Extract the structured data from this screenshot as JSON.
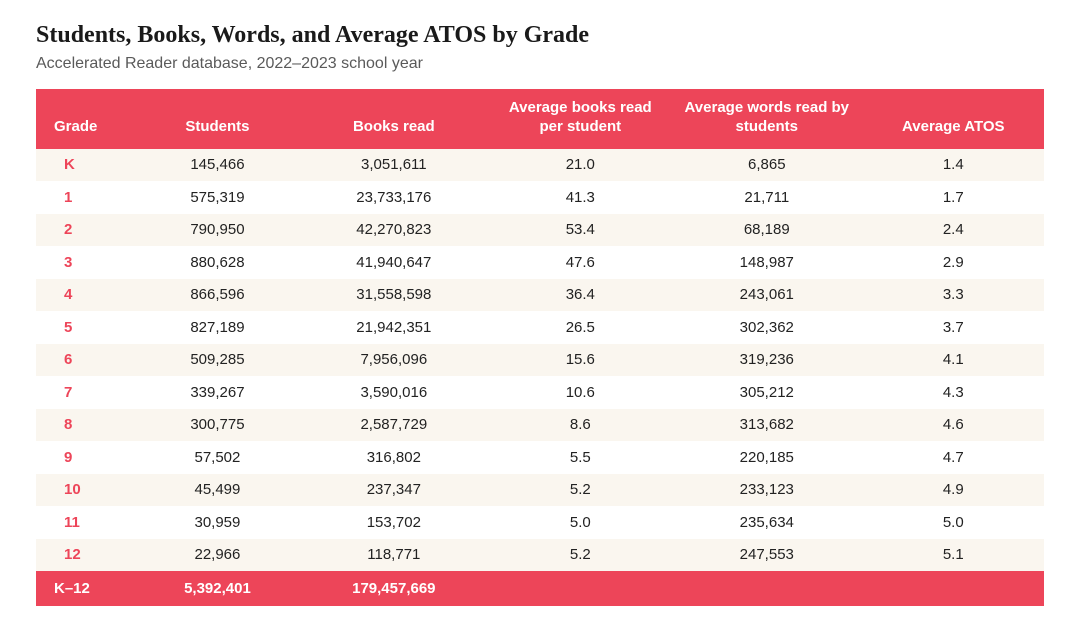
{
  "title": "Students, Books, Words, and Average ATOS by Grade",
  "subtitle": "Accelerated Reader database, 2022–2023 school year",
  "table": {
    "type": "table",
    "header_bg": "#ed4559",
    "header_fg": "#ffffff",
    "row_even_bg": "#faf6ef",
    "row_odd_bg": "#ffffff",
    "grade_color": "#ed4559",
    "text_color": "#222222",
    "title_fontsize": 24,
    "subtitle_fontsize": 16,
    "header_fontsize": 15,
    "cell_fontsize": 15,
    "columns": [
      {
        "key": "grade",
        "label": "Grade",
        "align": "left",
        "width_pct": 10
      },
      {
        "key": "students",
        "label": "Students",
        "align": "center",
        "width_pct": 16
      },
      {
        "key": "books",
        "label": "Books read",
        "align": "center",
        "width_pct": 19
      },
      {
        "key": "avg_books",
        "label": "Average books read per student",
        "align": "center",
        "width_pct": 18
      },
      {
        "key": "avg_words",
        "label": "Average words read by students",
        "align": "center",
        "width_pct": 19
      },
      {
        "key": "atos",
        "label": "Average ATOS",
        "align": "center",
        "width_pct": 18
      }
    ],
    "rows": [
      {
        "grade": "K",
        "students": "145,466",
        "books": "3,051,611",
        "avg_books": "21.0",
        "avg_words": "6,865",
        "atos": "1.4"
      },
      {
        "grade": "1",
        "students": "575,319",
        "books": "23,733,176",
        "avg_books": "41.3",
        "avg_words": "21,711",
        "atos": "1.7"
      },
      {
        "grade": "2",
        "students": "790,950",
        "books": "42,270,823",
        "avg_books": "53.4",
        "avg_words": "68,189",
        "atos": "2.4"
      },
      {
        "grade": "3",
        "students": "880,628",
        "books": "41,940,647",
        "avg_books": "47.6",
        "avg_words": "148,987",
        "atos": "2.9"
      },
      {
        "grade": "4",
        "students": "866,596",
        "books": "31,558,598",
        "avg_books": "36.4",
        "avg_words": "243,061",
        "atos": "3.3"
      },
      {
        "grade": "5",
        "students": "827,189",
        "books": "21,942,351",
        "avg_books": "26.5",
        "avg_words": "302,362",
        "atos": "3.7"
      },
      {
        "grade": "6",
        "students": "509,285",
        "books": "7,956,096",
        "avg_books": "15.6",
        "avg_words": "319,236",
        "atos": "4.1"
      },
      {
        "grade": "7",
        "students": "339,267",
        "books": "3,590,016",
        "avg_books": "10.6",
        "avg_words": "305,212",
        "atos": "4.3"
      },
      {
        "grade": "8",
        "students": "300,775",
        "books": "2,587,729",
        "avg_books": "8.6",
        "avg_words": "313,682",
        "atos": "4.6"
      },
      {
        "grade": "9",
        "students": "57,502",
        "books": "316,802",
        "avg_books": "5.5",
        "avg_words": "220,185",
        "atos": "4.7"
      },
      {
        "grade": "10",
        "students": "45,499",
        "books": "237,347",
        "avg_books": "5.2",
        "avg_words": "233,123",
        "atos": "4.9"
      },
      {
        "grade": "11",
        "students": "30,959",
        "books": "153,702",
        "avg_books": "5.0",
        "avg_words": "235,634",
        "atos": "5.0"
      },
      {
        "grade": "12",
        "students": "22,966",
        "books": "118,771",
        "avg_books": "5.2",
        "avg_words": "247,553",
        "atos": "5.1"
      }
    ],
    "footer": {
      "grade": "K–12",
      "students": "5,392,401",
      "books": "179,457,669",
      "avg_books": "",
      "avg_words": "",
      "atos": ""
    }
  }
}
